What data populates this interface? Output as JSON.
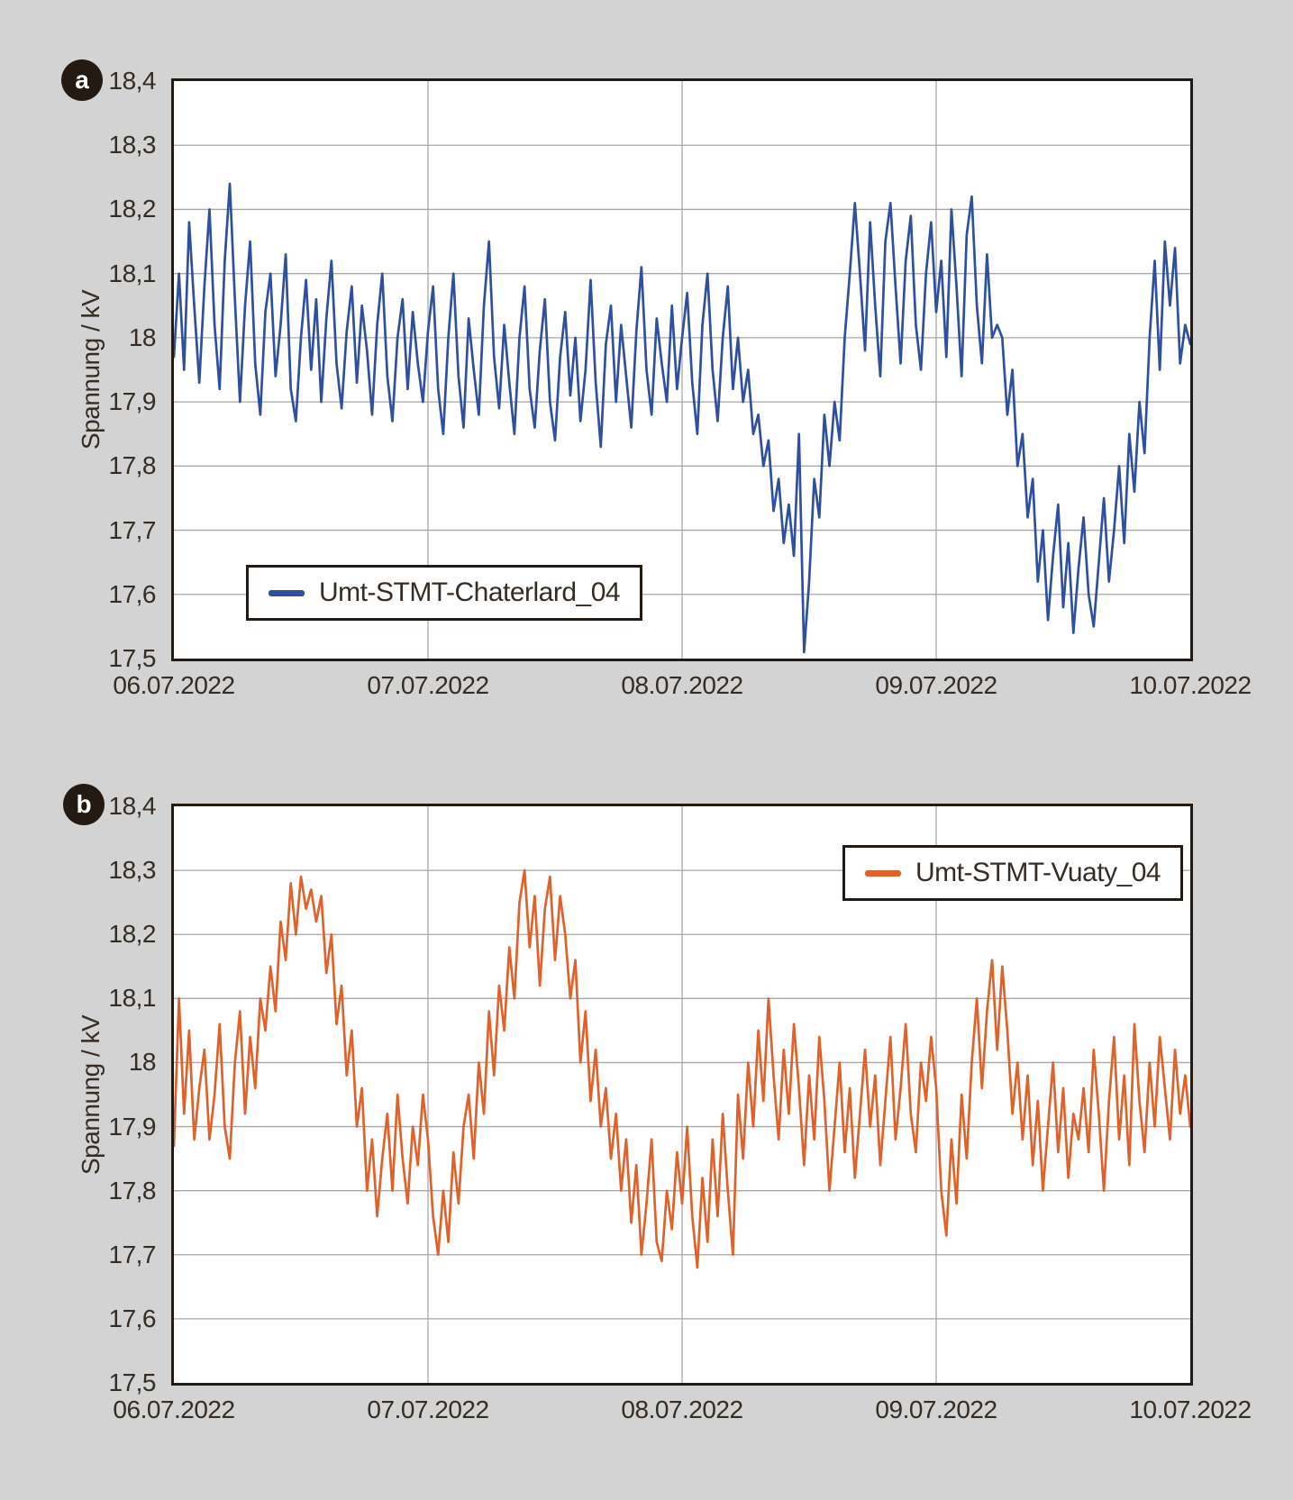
{
  "page": {
    "background_color": "#d3d3d3",
    "plot_background": "#ffffff",
    "frame_color": "#231a12",
    "grid_color": "#a7a7a7",
    "text_color": "#352c23"
  },
  "panels": [
    {
      "badge": "a"
    },
    {
      "badge": "b"
    }
  ],
  "chart_data": [
    {
      "panel": "a",
      "type": "line",
      "title": "",
      "ylabel": "Spannung / kV",
      "xlabel": "",
      "grid": true,
      "legend_position": "bottom-left-inside",
      "ylim": [
        17.5,
        18.4
      ],
      "y_ticks": [
        18.4,
        18.3,
        18.2,
        18.1,
        18.0,
        17.9,
        17.8,
        17.7,
        17.6,
        17.5
      ],
      "y_tick_labels": [
        "18,4",
        "18,3",
        "18,2",
        "18,1",
        "18",
        "17,9",
        "17,8",
        "17,7",
        "17,6",
        "17,5"
      ],
      "x_tick_labels": [
        "06.07.2022",
        "07.07.2022",
        "08.07.2022",
        "09.07.2022",
        "10.07.2022"
      ],
      "x_range_days": [
        0,
        4
      ],
      "series": [
        {
          "name": "Umt-STMT-Chaterlard_04",
          "color": "#2f509e",
          "unit": "kV",
          "values": [
            17.97,
            18.1,
            17.95,
            18.18,
            18.05,
            17.93,
            18.08,
            18.2,
            18.02,
            17.92,
            18.12,
            18.24,
            18.06,
            17.9,
            18.05,
            18.15,
            17.96,
            17.88,
            18.04,
            18.1,
            17.94,
            18.02,
            18.13,
            17.92,
            17.87,
            18.0,
            18.09,
            17.95,
            18.06,
            17.9,
            18.03,
            18.12,
            17.96,
            17.89,
            18.01,
            18.08,
            17.93,
            18.05,
            17.98,
            17.88,
            18.02,
            18.1,
            17.94,
            17.87,
            18.0,
            18.06,
            17.92,
            18.04,
            17.96,
            17.9,
            18.01,
            18.08,
            17.92,
            17.85,
            18.0,
            18.1,
            17.94,
            17.86,
            18.03,
            17.95,
            17.88,
            18.05,
            18.15,
            17.97,
            17.89,
            18.02,
            17.93,
            17.85,
            18.0,
            18.08,
            17.92,
            17.86,
            17.98,
            18.06,
            17.9,
            17.84,
            17.97,
            18.04,
            17.91,
            18.0,
            17.87,
            17.95,
            18.09,
            17.93,
            17.83,
            17.99,
            18.05,
            17.9,
            18.02,
            17.94,
            17.86,
            18.01,
            18.11,
            17.95,
            17.88,
            18.03,
            17.96,
            17.9,
            18.05,
            17.92,
            18.0,
            18.07,
            17.93,
            17.85,
            18.02,
            18.1,
            17.95,
            17.87,
            18.0,
            18.08,
            17.92,
            18.0,
            17.9,
            17.95,
            17.85,
            17.88,
            17.8,
            17.84,
            17.73,
            17.78,
            17.68,
            17.74,
            17.66,
            17.85,
            17.51,
            17.62,
            17.78,
            17.72,
            17.88,
            17.8,
            17.9,
            17.84,
            18.0,
            18.1,
            18.21,
            18.1,
            17.98,
            18.18,
            18.05,
            17.94,
            18.15,
            18.21,
            18.08,
            17.96,
            18.12,
            18.19,
            18.02,
            17.95,
            18.1,
            18.18,
            18.04,
            18.12,
            17.97,
            18.2,
            18.08,
            17.94,
            18.16,
            18.22,
            18.05,
            17.96,
            18.13,
            18.0,
            18.02,
            18.0,
            17.88,
            17.95,
            17.8,
            17.85,
            17.72,
            17.78,
            17.62,
            17.7,
            17.56,
            17.66,
            17.74,
            17.58,
            17.68,
            17.54,
            17.64,
            17.72,
            17.6,
            17.55,
            17.65,
            17.75,
            17.62,
            17.7,
            17.8,
            17.68,
            17.85,
            17.76,
            17.9,
            17.82,
            18.0,
            18.12,
            17.95,
            18.15,
            18.05,
            18.14,
            17.96,
            18.02,
            17.99
          ]
        }
      ]
    },
    {
      "panel": "b",
      "type": "line",
      "title": "",
      "ylabel": "Spannung / kV",
      "xlabel": "",
      "grid": true,
      "legend_position": "top-right-inside",
      "ylim": [
        17.5,
        18.4
      ],
      "y_ticks": [
        18.4,
        18.3,
        18.2,
        18.1,
        18.0,
        17.9,
        17.8,
        17.7,
        17.6,
        17.5
      ],
      "y_tick_labels": [
        "18,4",
        "18,3",
        "18,2",
        "18,1",
        "18",
        "17,9",
        "17,8",
        "17,7",
        "17,6",
        "17,5"
      ],
      "x_tick_labels": [
        "06.07.2022",
        "07.07.2022",
        "08.07.2022",
        "09.07.2022",
        "10.07.2022"
      ],
      "x_range_days": [
        0,
        4
      ],
      "series": [
        {
          "name": "Umt-STMT-Vuaty_04",
          "color": "#e0622b",
          "unit": "kV",
          "values": [
            17.87,
            18.1,
            17.92,
            18.05,
            17.88,
            17.96,
            18.02,
            17.88,
            17.95,
            18.06,
            17.9,
            17.85,
            18.0,
            18.08,
            17.92,
            18.04,
            17.96,
            18.1,
            18.05,
            18.15,
            18.08,
            18.22,
            18.16,
            18.28,
            18.2,
            18.29,
            18.24,
            18.27,
            18.22,
            18.26,
            18.14,
            18.2,
            18.06,
            18.12,
            17.98,
            18.05,
            17.9,
            17.96,
            17.8,
            17.88,
            17.76,
            17.85,
            17.92,
            17.8,
            17.95,
            17.85,
            17.78,
            17.9,
            17.84,
            17.95,
            17.88,
            17.76,
            17.7,
            17.8,
            17.72,
            17.86,
            17.78,
            17.9,
            17.95,
            17.85,
            18.0,
            17.92,
            18.08,
            17.98,
            18.12,
            18.05,
            18.18,
            18.1,
            18.25,
            18.3,
            18.18,
            18.26,
            18.12,
            18.24,
            18.29,
            18.16,
            18.26,
            18.2,
            18.1,
            18.16,
            18.0,
            18.08,
            17.94,
            18.02,
            17.9,
            17.96,
            17.85,
            17.92,
            17.8,
            17.88,
            17.75,
            17.84,
            17.7,
            17.78,
            17.88,
            17.72,
            17.69,
            17.8,
            17.74,
            17.86,
            17.78,
            17.9,
            17.76,
            17.68,
            17.82,
            17.72,
            17.88,
            17.76,
            17.92,
            17.8,
            17.7,
            17.95,
            17.85,
            18.0,
            17.9,
            18.05,
            17.94,
            18.1,
            17.98,
            17.88,
            18.02,
            17.92,
            18.06,
            17.96,
            17.84,
            17.98,
            17.88,
            18.04,
            17.94,
            17.8,
            17.9,
            18.0,
            17.86,
            17.96,
            17.82,
            17.92,
            18.02,
            17.9,
            17.98,
            17.84,
            17.94,
            18.04,
            17.88,
            17.96,
            18.06,
            17.92,
            17.86,
            18.0,
            17.94,
            18.04,
            17.96,
            17.8,
            17.73,
            17.88,
            17.78,
            17.95,
            17.85,
            18.0,
            18.1,
            17.96,
            18.08,
            18.16,
            18.02,
            18.15,
            18.05,
            17.92,
            18.0,
            17.88,
            17.98,
            17.84,
            17.94,
            17.8,
            17.9,
            18.0,
            17.86,
            17.96,
            17.82,
            17.92,
            17.88,
            17.96,
            17.86,
            18.02,
            17.92,
            17.8,
            17.94,
            18.04,
            17.88,
            17.98,
            17.84,
            18.06,
            17.94,
            17.86,
            18.0,
            17.9,
            18.04,
            17.96,
            17.88,
            18.02,
            17.92,
            17.98,
            17.9
          ]
        }
      ]
    }
  ]
}
